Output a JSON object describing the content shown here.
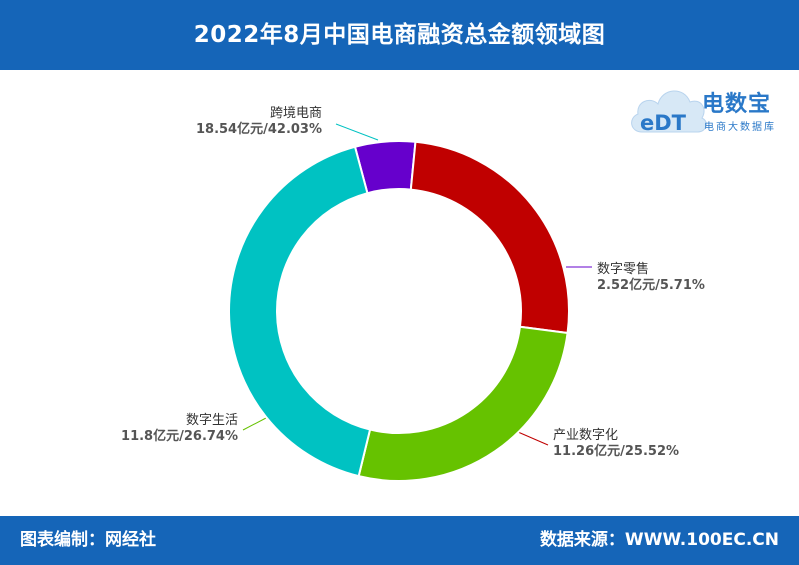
{
  "header": {
    "title": "2022年8月中国电商融资总金额领域图"
  },
  "footer": {
    "left": "图表编制：网经社",
    "right": "数据来源：WWW.100EC.CN"
  },
  "logo": {
    "badge": "eDT",
    "name": "电数宝",
    "tagline": "电商大数据库"
  },
  "colors": {
    "header": "#1565b8"
  },
  "chart_data": {
    "type": "pie",
    "style": "donut",
    "title": "2022年8月中国电商融资总金额领域图",
    "unit": "亿元",
    "slices": [
      {
        "name": "数字零售",
        "value": 2.52,
        "percent": "5.71%",
        "label": "2.52亿元/5.71%",
        "color": "#6600cc"
      },
      {
        "name": "产业数字化",
        "value": 11.26,
        "percent": "25.52%",
        "label": "11.26亿元/25.52%",
        "color": "#c00000"
      },
      {
        "name": "数字生活",
        "value": 11.8,
        "percent": "26.74%",
        "label": "11.8亿元/26.74%",
        "color": "#66c200"
      },
      {
        "name": "跨境电商",
        "value": 18.54,
        "percent": "42.03%",
        "label": "18.54亿元/42.03%",
        "color": "#00c2c2"
      }
    ]
  }
}
